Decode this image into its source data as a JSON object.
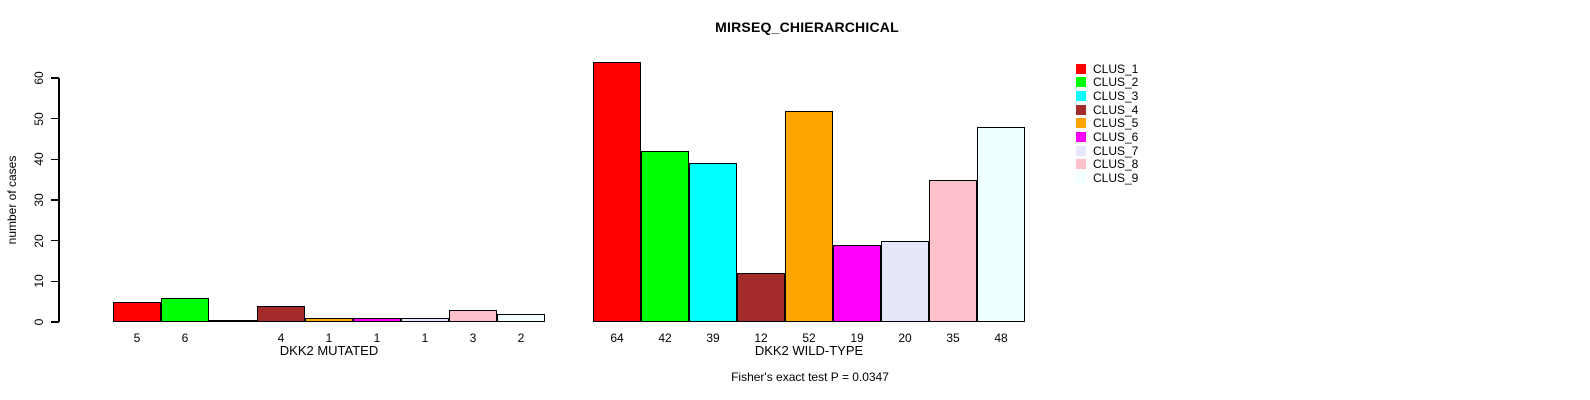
{
  "title": "MIRSEQ_CHIERARCHICAL",
  "chart_data": {
    "type": "bar",
    "title": "MIRSEQ_CHIERARCHICAL",
    "ylabel": "number of cases",
    "xlabel": "",
    "ylim": [
      0,
      60
    ],
    "y_ticks": [
      "0",
      "10",
      "20",
      "30",
      "40",
      "50",
      "60"
    ],
    "grid": false,
    "legend_position": "right",
    "series_labels": [
      "CLUS_1",
      "CLUS_2",
      "CLUS_3",
      "CLUS_4",
      "CLUS_5",
      "CLUS_6",
      "CLUS_7",
      "CLUS_8",
      "CLUS_9"
    ],
    "series_colors": [
      "#FF0000",
      "#00FF00",
      "#00FFFF",
      "#A52A2A",
      "#FFA500",
      "#FF00FF",
      "#E6E6FA",
      "#FFC0CB",
      "#F0FFFF"
    ],
    "groups": [
      {
        "label": "DKK2 MUTATED",
        "categories": [
          "CLUS_1",
          "CLUS_2",
          "CLUS_3",
          "CLUS_4",
          "CLUS_5",
          "CLUS_6",
          "CLUS_7",
          "CLUS_8",
          "CLUS_9"
        ],
        "values": [
          5,
          6,
          0,
          4,
          1,
          1,
          1,
          3,
          2
        ],
        "bar_labels": [
          "5",
          "6",
          "",
          "4",
          "1",
          "1",
          "1",
          "3",
          "2"
        ]
      },
      {
        "label": "DKK2 WILD-TYPE",
        "categories": [
          "CLUS_1",
          "CLUS_2",
          "CLUS_3",
          "CLUS_4",
          "CLUS_5",
          "CLUS_6",
          "CLUS_7",
          "CLUS_8",
          "CLUS_9"
        ],
        "values": [
          64,
          42,
          39,
          12,
          52,
          19,
          20,
          35,
          48
        ],
        "bar_labels": [
          "64",
          "42",
          "39",
          "12",
          "52",
          "19",
          "20",
          "35",
          "48"
        ]
      }
    ],
    "annotation": "Fisher's exact test P = 0.0347"
  },
  "legend": {
    "items": [
      {
        "label": "CLUS_1",
        "color": "#FF0000"
      },
      {
        "label": "CLUS_2",
        "color": "#00FF00"
      },
      {
        "label": "CLUS_3",
        "color": "#00FFFF"
      },
      {
        "label": "CLUS_4",
        "color": "#A52A2A"
      },
      {
        "label": "CLUS_5",
        "color": "#FFA500"
      },
      {
        "label": "CLUS_6",
        "color": "#FF00FF"
      },
      {
        "label": "CLUS_7",
        "color": "#E6E6FA"
      },
      {
        "label": "CLUS_8",
        "color": "#FFC0CB"
      },
      {
        "label": "CLUS_9",
        "color": "#F0FFFF"
      }
    ]
  }
}
